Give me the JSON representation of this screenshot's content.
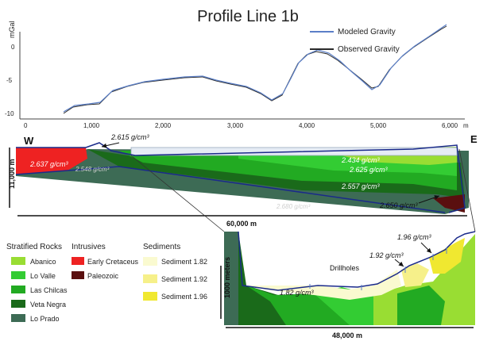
{
  "title": "Profile Line 1b",
  "gravity_panel": {
    "y_unit": "mGal",
    "y_ticks": [
      "0",
      "-5",
      "-10"
    ],
    "x_unit": "m",
    "x_ticks": [
      "0",
      "1,000",
      "2,000",
      "3,000",
      "4,000",
      "5,000",
      "6,000"
    ],
    "legend": {
      "modeled": "Modeled Gravity",
      "observed": "Observed Gravity"
    },
    "colors": {
      "modeled": "#5b7fc7",
      "observed": "#2a2a2a"
    }
  },
  "section_panel": {
    "west_label": "W",
    "east_label": "E",
    "depth_label": "11,000 m",
    "width_label": "60,000 m",
    "densities": {
      "d_2637": "2.637 g/cm³",
      "d_2615": "2.615 g/cm³",
      "d_2434": "2.434 g/cm³",
      "d_2625": "2.625 g/cm³",
      "d_2557": "2.557 g/cm³",
      "d_2650": "2.650 g/cm³",
      "d_2548": "2.548 g/cm³",
      "d_2680": "2.680 g/cm³"
    }
  },
  "inset_panel": {
    "depth_label": "1000 meters",
    "width_label": "48,000 m",
    "drillholes_label": "Drillholes",
    "densities": {
      "d_182": "1.82 g/cm³",
      "d_192": "1.92 g/cm³",
      "d_196": "1.96 g/cm³"
    }
  },
  "legend": {
    "stratified_title": "Stratified Rocks",
    "stratified": [
      {
        "label": "Abanico",
        "color": "#99dd33"
      },
      {
        "label": "Lo Valle",
        "color": "#33cc33"
      },
      {
        "label": "Las Chilcas",
        "color": "#22aa22"
      },
      {
        "label": "Veta Negra",
        "color": "#1a6a1a"
      },
      {
        "label": "Lo Prado",
        "color": "#3d6b55"
      }
    ],
    "intrusives_title": "Intrusives",
    "intrusives": [
      {
        "label": "Early Cretaceus",
        "color": "#ee2222"
      },
      {
        "label": "Paleozoic",
        "color": "#5a0f0f"
      }
    ],
    "sediments_title": "Sediments",
    "sediments": [
      {
        "label": "Sediment 1.82",
        "color": "#fafad0"
      },
      {
        "label": "Sediment 1.92",
        "color": "#f6f08a"
      },
      {
        "label": "Sediment 1.96",
        "color": "#f0e830"
      }
    ]
  }
}
